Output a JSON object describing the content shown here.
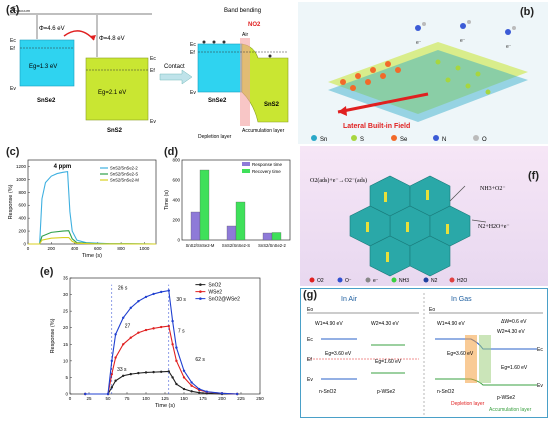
{
  "panels": {
    "a": {
      "label": "(a)",
      "evacuum": "E",
      "evacuum_sub": "vacuum",
      "phi1": "Φ=4.6 eV",
      "phi2": "Φ=4.8 eV",
      "ec": "Ec",
      "ef": "Ef",
      "ev": "Ev",
      "eg1": "Eg=1.3 eV",
      "eg2": "Eg=2.1 eV",
      "mat1": "SnSe2",
      "mat2": "SnS2",
      "contact": "Contact",
      "band_bending": "Band bending",
      "no2": "NO2",
      "air": "Air",
      "depletion": "Depletion layer",
      "accumulation": "Accumulation layer"
    },
    "b": {
      "label": "(b)",
      "field": "Lateral Built-in Field",
      "legend": [
        "Sn",
        "S",
        "Se",
        "N",
        "O"
      ],
      "legend_colors": [
        "#2aa8c8",
        "#a7d63f",
        "#f26a2a",
        "#3b5bd6",
        "#bbbbbb"
      ]
    },
    "c": {
      "label": "(c)",
      "annotation": "4 ppm",
      "xlabel": "Time (s)",
      "ylabel": "Response (%)"
    },
    "d": {
      "label": "(d)",
      "ylabel": "Time (s)",
      "legend": [
        "Response time",
        "Recovery time"
      ]
    },
    "e": {
      "label": "(e)",
      "xlabel": "Time (s)",
      "ylabel": "Response (%)",
      "legend": [
        "SnO2",
        "WSe2",
        "SnO2@WSe2"
      ],
      "annot_26": "26 s",
      "annot_30": "30 s",
      "annot_33": "33 s",
      "annot_62": "62 s",
      "annot_27": "27",
      "annot_7": "7 s"
    },
    "f": {
      "label": "(f)",
      "eq1": "O2(ads)+e⁻→O2⁻(ads)",
      "eq2": "NH3+O2⁻",
      "eq3": "N2+H2O+e⁻",
      "legend": [
        "O2",
        "O⁻",
        "e⁻",
        "NH3",
        "N2",
        "H2O"
      ]
    },
    "g": {
      "label": "(g)",
      "left_title": "In Air",
      "right_title": "In Gas",
      "eo": "Eo",
      "w1": "W1=4.90 eV",
      "w2": "W2=4.30 eV",
      "w1b": "W1=4.90 eV",
      "w2b": "W2=4.30 eV",
      "eg1": "Eg=3.60 eV",
      "eg2": "Eg=1.60 eV",
      "eg1b": "Eg=3.60 eV",
      "eg2b": "Eg=1.60 eV",
      "dw": "ΔW=0.6 eV",
      "ec": "Ec",
      "ef": "Ef",
      "ev": "Ev",
      "nsno2": "n-SnO2",
      "pwse2": "p-WSe2",
      "depletion": "Depletion layer",
      "accumulation": "Accumulation layer"
    }
  },
  "chart_data": [
    {
      "panel": "c",
      "type": "line",
      "xlabel": "Time (s)",
      "ylabel": "Response (%)",
      "xlim": [
        0,
        1100
      ],
      "ylim": [
        0,
        1300
      ],
      "xticks": [
        0,
        200,
        400,
        600,
        800,
        1000
      ],
      "yticks": [
        0,
        200,
        400,
        600,
        800,
        1000,
        1200
      ],
      "series": [
        {
          "name": "SnS2/SnSe2-2",
          "color": "#3fb0e0",
          "x": [
            0,
            100,
            120,
            150,
            200,
            250,
            300,
            340,
            360,
            380,
            420,
            500,
            700,
            1100
          ],
          "y": [
            0,
            0,
            700,
            950,
            1050,
            1090,
            1110,
            1120,
            500,
            200,
            60,
            20,
            5,
            0
          ]
        },
        {
          "name": "SnS2/SnSe2-S",
          "color": "#2fa04a",
          "x": [
            0,
            100,
            120,
            200,
            300,
            350,
            380,
            420,
            600,
            1100
          ],
          "y": [
            0,
            0,
            120,
            180,
            200,
            205,
            80,
            20,
            5,
            0
          ]
        },
        {
          "name": "SnS2/SnSe2-M",
          "color": "#d8d020",
          "x": [
            0,
            100,
            120,
            200,
            300,
            350,
            380,
            420,
            600,
            1100
          ],
          "y": [
            0,
            0,
            60,
            90,
            100,
            100,
            40,
            10,
            2,
            0
          ]
        }
      ]
    },
    {
      "panel": "d",
      "type": "bar",
      "ylabel": "Time (s)",
      "ylim": [
        0,
        800
      ],
      "yticks": [
        0,
        200,
        400,
        600,
        800
      ],
      "categories": [
        "SnS2/SnSe2-M",
        "SnS2/SnSe2-S",
        "SnS2/SnSe2-2"
      ],
      "series": [
        {
          "name": "Response time",
          "color": "#8e7ad8",
          "values": [
            280,
            140,
            70
          ]
        },
        {
          "name": "Recovery time",
          "color": "#3fe05a",
          "values": [
            700,
            380,
            75
          ]
        }
      ]
    },
    {
      "panel": "e",
      "type": "line",
      "xlabel": "Time (s)",
      "ylabel": "Response (%)",
      "xlim": [
        0,
        250
      ],
      "ylim": [
        0,
        35
      ],
      "xticks": [
        0,
        25,
        50,
        75,
        100,
        125,
        150,
        175,
        200,
        225,
        250
      ],
      "yticks": [
        0,
        5,
        10,
        15,
        20,
        25,
        30,
        35
      ],
      "series": [
        {
          "name": "SnO2",
          "color": "#222222",
          "x": [
            20,
            50,
            55,
            60,
            70,
            80,
            90,
            100,
            110,
            120,
            130,
            135,
            140,
            150,
            160,
            170,
            180,
            200,
            220
          ],
          "y": [
            0,
            0,
            2,
            4,
            5.5,
            6,
            6.3,
            6.5,
            6.6,
            6.7,
            6.8,
            5,
            3,
            1.5,
            0.8,
            0.4,
            0.2,
            0,
            0
          ]
        },
        {
          "name": "WSe2",
          "color": "#e02020",
          "x": [
            20,
            50,
            55,
            60,
            70,
            80,
            90,
            100,
            110,
            120,
            130,
            135,
            140,
            150,
            160,
            170,
            180,
            200,
            220
          ],
          "y": [
            0,
            0,
            6,
            11,
            15,
            17,
            18.5,
            19.3,
            19.8,
            20.2,
            20.5,
            15,
            10,
            5,
            2.5,
            1.2,
            0.6,
            0.2,
            0
          ]
        },
        {
          "name": "SnO2@WSe2",
          "color": "#2040d0",
          "x": [
            20,
            50,
            55,
            60,
            70,
            80,
            90,
            100,
            110,
            120,
            130,
            135,
            140,
            150,
            160,
            170,
            180,
            200,
            220
          ],
          "y": [
            0,
            0,
            10,
            18,
            23,
            26,
            28,
            29.3,
            30.2,
            30.8,
            31.2,
            22,
            14,
            7,
            3.5,
            1.5,
            0.7,
            0.2,
            0
          ]
        }
      ]
    }
  ]
}
